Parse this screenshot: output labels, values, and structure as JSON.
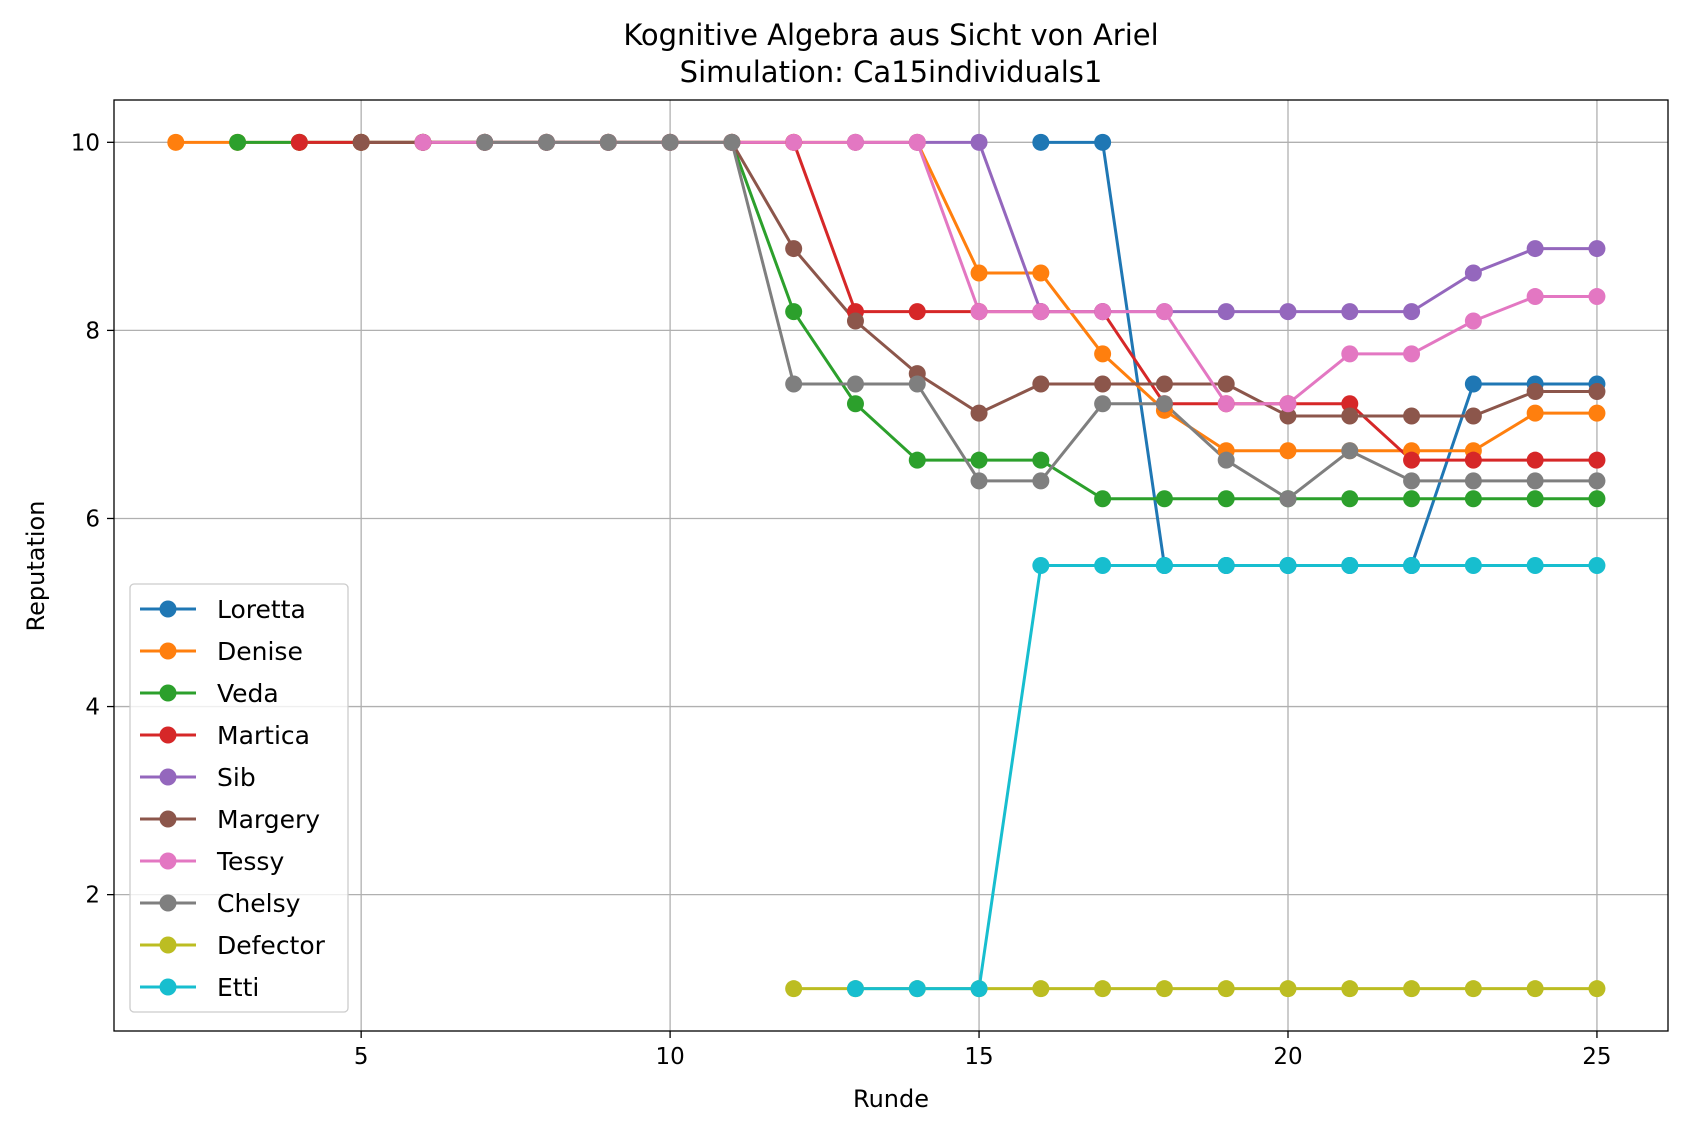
{
  "chart_data": {
    "type": "line",
    "title": "Kognitive Algebra aus Sicht von Ariel",
    "subtitle": "Simulation: Ca15individuals1",
    "xlabel": "Runde",
    "ylabel": "Reputation",
    "xlim": [
      1.0,
      26.15
    ],
    "ylim": [
      0.55,
      10.45
    ],
    "xticks": [
      5,
      10,
      15,
      20,
      25
    ],
    "yticks": [
      2,
      4,
      6,
      8,
      10
    ],
    "grid": true,
    "legend_position": "lower-left",
    "marker": "circle",
    "series": [
      {
        "name": "Loretta",
        "color": "#1f77b4",
        "x": [
          16,
          17,
          18,
          19,
          20,
          21,
          22,
          23,
          24,
          25
        ],
        "y": [
          10,
          10,
          5.5,
          5.5,
          5.5,
          5.5,
          5.5,
          7.43,
          7.43,
          7.43
        ]
      },
      {
        "name": "Denise",
        "color": "#ff7f0e",
        "x": [
          2,
          3,
          4,
          5,
          6,
          7,
          8,
          9,
          10,
          11,
          12,
          13,
          14,
          15,
          16,
          17,
          18,
          19,
          20,
          21,
          22,
          23,
          24,
          25
        ],
        "y": [
          10,
          10,
          10,
          10,
          10,
          10,
          10,
          10,
          10,
          10,
          10,
          10,
          10,
          8.61,
          8.61,
          7.75,
          7.15,
          6.72,
          6.72,
          6.72,
          6.72,
          6.72,
          7.12,
          7.12
        ]
      },
      {
        "name": "Veda",
        "color": "#2ca02c",
        "x": [
          3,
          4,
          5,
          6,
          7,
          8,
          9,
          10,
          11,
          12,
          13,
          14,
          15,
          16,
          17,
          18,
          19,
          20,
          21,
          22,
          23,
          24,
          25
        ],
        "y": [
          10,
          10,
          10,
          10,
          10,
          10,
          10,
          10,
          10,
          8.2,
          7.22,
          6.62,
          6.62,
          6.62,
          6.21,
          6.21,
          6.21,
          6.21,
          6.21,
          6.21,
          6.21,
          6.21,
          6.21
        ]
      },
      {
        "name": "Martica",
        "color": "#d62728",
        "x": [
          4,
          5,
          6,
          7,
          8,
          9,
          10,
          11,
          12,
          13,
          14,
          15,
          16,
          17,
          18,
          19,
          20,
          21,
          22,
          23,
          24,
          25
        ],
        "y": [
          10,
          10,
          10,
          10,
          10,
          10,
          10,
          10,
          10,
          8.2,
          8.2,
          8.2,
          8.2,
          8.2,
          7.22,
          7.22,
          7.22,
          7.22,
          6.62,
          6.62,
          6.62,
          6.62
        ]
      },
      {
        "name": "Sib",
        "color": "#9467bd",
        "x": [
          13,
          14,
          15,
          16,
          17,
          18,
          19,
          20,
          21,
          22,
          23,
          24,
          25
        ],
        "y": [
          10,
          10,
          10,
          8.2,
          8.2,
          8.2,
          8.2,
          8.2,
          8.2,
          8.2,
          8.61,
          8.87,
          8.87
        ]
      },
      {
        "name": "Margery",
        "color": "#8c564b",
        "x": [
          5,
          6,
          7,
          8,
          9,
          10,
          11,
          12,
          13,
          14,
          15,
          16,
          17,
          18,
          19,
          20,
          21,
          22,
          23,
          24,
          25
        ],
        "y": [
          10,
          10,
          10,
          10,
          10,
          10,
          10,
          8.87,
          8.1,
          7.54,
          7.12,
          7.43,
          7.43,
          7.43,
          7.43,
          7.09,
          7.09,
          7.09,
          7.09,
          7.35,
          7.35
        ]
      },
      {
        "name": "Tessy",
        "color": "#e377c2",
        "x": [
          6,
          7,
          8,
          9,
          10,
          11,
          12,
          13,
          14,
          15,
          16,
          17,
          18,
          19,
          20,
          21,
          22,
          23,
          24,
          25
        ],
        "y": [
          10,
          10,
          10,
          10,
          10,
          10,
          10,
          10,
          10,
          8.2,
          8.2,
          8.2,
          8.2,
          7.22,
          7.22,
          7.75,
          7.75,
          8.1,
          8.36,
          8.36
        ]
      },
      {
        "name": "Chelsy",
        "color": "#7f7f7f",
        "x": [
          7,
          8,
          9,
          10,
          11,
          12,
          13,
          14,
          15,
          16,
          17,
          18,
          19,
          20,
          21,
          22,
          23,
          24,
          25
        ],
        "y": [
          10,
          10,
          10,
          10,
          10,
          7.43,
          7.43,
          7.43,
          6.4,
          6.4,
          7.22,
          7.22,
          6.62,
          6.21,
          6.72,
          6.4,
          6.4,
          6.4,
          6.4
        ]
      },
      {
        "name": "Defector",
        "color": "#bcbd22",
        "x": [
          12,
          13,
          14,
          15,
          16,
          17,
          18,
          19,
          20,
          21,
          22,
          23,
          24,
          25
        ],
        "y": [
          1,
          1,
          1,
          1,
          1,
          1,
          1,
          1,
          1,
          1,
          1,
          1,
          1,
          1
        ]
      },
      {
        "name": "Etti",
        "color": "#17becf",
        "x": [
          13,
          14,
          15,
          16,
          17,
          18,
          19,
          20,
          21,
          22,
          23,
          24,
          25
        ],
        "y": [
          1,
          1,
          1,
          5.5,
          5.5,
          5.5,
          5.5,
          5.5,
          5.5,
          5.5,
          5.5,
          5.5,
          5.5
        ]
      }
    ]
  }
}
